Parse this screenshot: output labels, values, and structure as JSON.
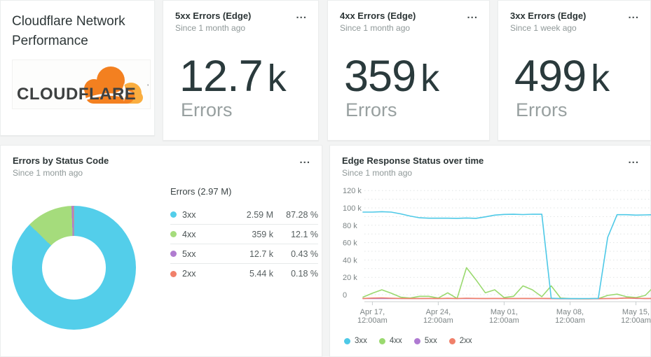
{
  "header": {
    "title": "Cloudflare Network Performance",
    "logo_text": "CLOUDFLARE",
    "logo_colors": {
      "cloud_main": "#F38020",
      "cloud_light": "#FAAE40",
      "text": "#3E4141"
    }
  },
  "icons": {
    "menu": "..."
  },
  "kpi_cards": [
    {
      "title": "5xx Errors (Edge)",
      "subtitle": "Since 1 month ago",
      "value": "12.7",
      "unit": "k",
      "label": "Errors"
    },
    {
      "title": "4xx Errors (Edge)",
      "subtitle": "Since 1 month ago",
      "value": "359",
      "unit": "k",
      "label": "Errors"
    },
    {
      "title": "3xx Errors (Edge)",
      "subtitle": "Since 1 week ago",
      "value": "499",
      "unit": "k",
      "label": "Errors"
    }
  ],
  "chart_data": [
    {
      "type": "pie",
      "title": "Errors by Status Code",
      "subtitle": "Since 1 month ago",
      "total_label": "Errors (2.97 M)",
      "donut": true,
      "slices": [
        {
          "label": "3xx",
          "value": "2.59 M",
          "pct": 87.28,
          "pct_label": "87.28 %",
          "color": "#53CEEA"
        },
        {
          "label": "4xx",
          "value": "359 k",
          "pct": 12.1,
          "pct_label": "12.1 %",
          "color": "#A5DC7C"
        },
        {
          "label": "5xx",
          "value": "12.7 k",
          "pct": 0.43,
          "pct_label": "0.43 %",
          "color": "#B07CD0"
        },
        {
          "label": "2xx",
          "value": "5.44 k",
          "pct": 0.18,
          "pct_label": "0.18 %",
          "color": "#F0806A"
        }
      ]
    },
    {
      "type": "line",
      "title": "Edge Response Status over time",
      "subtitle": "Since 1 month ago",
      "values_unit": "thousands",
      "ylim_k": [
        0,
        120
      ],
      "grid_step_k": 10,
      "y_ticks": [
        {
          "v": 0,
          "label": "0"
        },
        {
          "v": 20,
          "label": "20 k"
        },
        {
          "v": 40,
          "label": "40 k"
        },
        {
          "v": 60,
          "label": "60 k"
        },
        {
          "v": 80,
          "label": "80 k"
        },
        {
          "v": 100,
          "label": "100 k"
        },
        {
          "v": 120,
          "label": "120 k"
        }
      ],
      "x_ticks": [
        {
          "day": 1,
          "line1": "Apr 17,",
          "line2": "12:00am"
        },
        {
          "day": 8,
          "line1": "Apr 24,",
          "line2": "12:00am"
        },
        {
          "day": 15,
          "line1": "May 01,",
          "line2": "12:00am"
        },
        {
          "day": 22,
          "line1": "May 08,",
          "line2": "12:00am"
        },
        {
          "day": 29,
          "line1": "May 15,",
          "line2": "12:00am"
        }
      ],
      "draw_order": [
        2,
        1,
        3,
        0
      ],
      "series": [
        {
          "name": "3xx",
          "color": "#4EC9E7",
          "values_k": [
            100,
            100,
            100.5,
            100,
            98,
            95.5,
            93.5,
            93,
            93,
            93,
            92.8,
            93.2,
            92.8,
            94.5,
            96.5,
            97.3,
            97.5,
            97.2,
            97.6,
            97.5,
            0.8,
            0.4,
            0.3,
            0.3,
            0.4,
            0.6,
            71,
            97,
            97,
            96.5,
            96.8,
            97
          ]
        },
        {
          "name": "4xx",
          "color": "#9AD96F",
          "values_k": [
            2,
            6.5,
            10.5,
            6.5,
            2,
            1,
            3,
            3,
            1,
            7,
            0.5,
            36,
            22,
            7,
            10.5,
            1.5,
            3,
            15,
            10.5,
            2.5,
            15,
            1,
            0.3,
            0.2,
            0.2,
            0.3,
            4,
            5.5,
            2.5,
            1.5,
            4,
            15
          ]
        },
        {
          "name": "5xx",
          "color": "#AF7AD2",
          "values_k": [
            0.4,
            0.5,
            0.4,
            0.4,
            0.4,
            0.4,
            0.4,
            0.4,
            0.4,
            0.5,
            0.4,
            0.6,
            0.5,
            0.4,
            0.4,
            0.4,
            0.4,
            0.5,
            0.4,
            0.4,
            0.3,
            0.2,
            0.2,
            0.2,
            0.2,
            0.2,
            0.4,
            0.5,
            1.2,
            0.6,
            0.4,
            0.4
          ]
        },
        {
          "name": "2xx",
          "color": "#F0806A",
          "values_k": [
            0.5,
            1,
            1.2,
            0.8,
            0.6,
            0.5,
            0.5,
            0.6,
            0.5,
            0.7,
            0.5,
            0.8,
            0.6,
            0.5,
            0.6,
            0.5,
            0.5,
            0.6,
            0.5,
            0.6,
            0.5,
            0.3,
            0.2,
            0.2,
            0.2,
            0.3,
            0.4,
            0.6,
            1,
            0.8,
            0.5,
            0.6
          ]
        }
      ]
    }
  ]
}
